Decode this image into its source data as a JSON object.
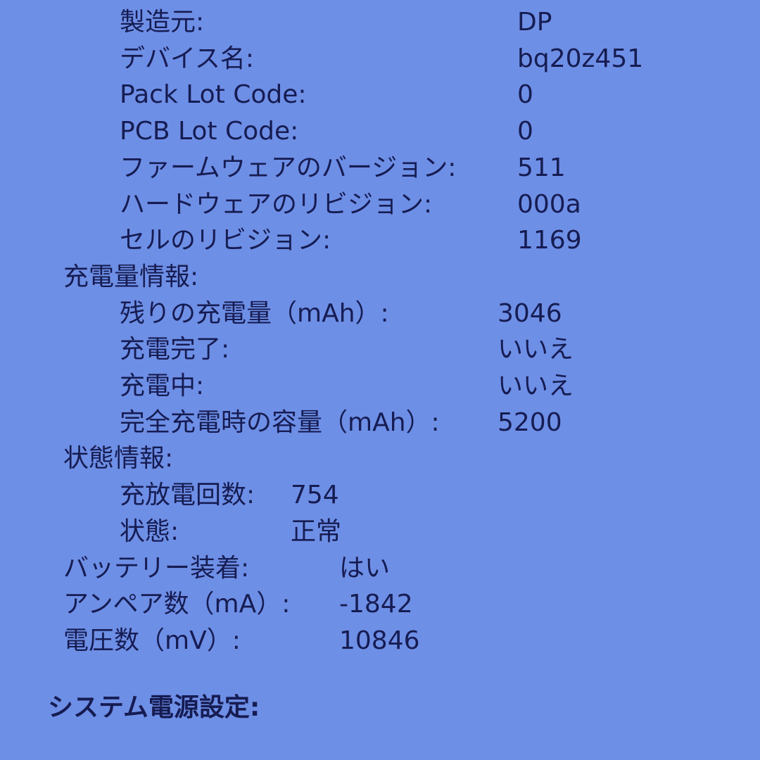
{
  "colors": {
    "background": "#6e8fe6",
    "text": "#161c52"
  },
  "model_info": [
    {
      "label": "製造元:",
      "value": "DP"
    },
    {
      "label": "デバイス名:",
      "value": "bq20z451"
    },
    {
      "label": "Pack Lot Code:",
      "value": "0"
    },
    {
      "label": "PCB Lot Code:",
      "value": "0"
    },
    {
      "label": "ファームウェアのバージョン:",
      "value": "511"
    },
    {
      "label": "ハードウェアのリビジョン:",
      "value": "000a"
    },
    {
      "label": "セルのリビジョン:",
      "value": "1169"
    }
  ],
  "charge_info": {
    "title": "充電量情報:",
    "items": [
      {
        "label": "残りの充電量（mAh）:",
        "value": "3046"
      },
      {
        "label": "充電完了:",
        "value": "いいえ"
      },
      {
        "label": "充電中:",
        "value": "いいえ"
      },
      {
        "label": "完全充電時の容量（mAh）:",
        "value": "5200"
      }
    ]
  },
  "health_info": {
    "title": "状態情報:",
    "items": [
      {
        "label": "充放電回数:",
        "value": "754"
      },
      {
        "label": "状態:",
        "value": "正常"
      }
    ]
  },
  "battery": [
    {
      "label": "バッテリー装着:",
      "value": "はい"
    },
    {
      "label": "アンペア数（mA）:",
      "value": "-1842"
    },
    {
      "label": "電圧数（mV）:",
      "value": "10846"
    }
  ],
  "system_power_title": "システム電源設定:"
}
